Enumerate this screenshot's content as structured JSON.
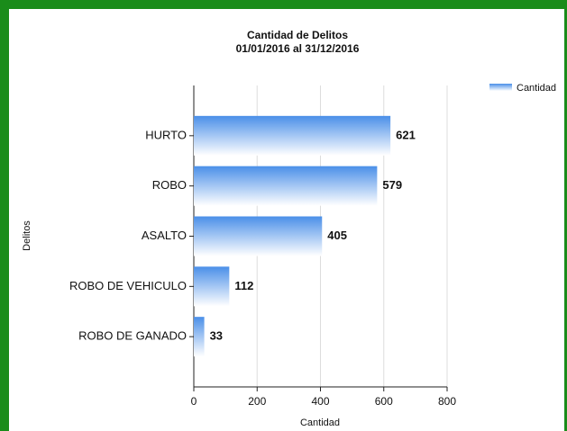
{
  "chart_data": {
    "type": "bar",
    "orientation": "horizontal",
    "title": "Cantidad de Delitos",
    "subtitle": "01/01/2016 al 31/12/2016",
    "x_label": "Cantidad",
    "y_label": "Delitos",
    "categories": [
      "HURTO",
      "ROBO",
      "ASALTO",
      "ROBO DE VEHICULO",
      "ROBO DE GANADO"
    ],
    "series": [
      {
        "name": "Cantidad",
        "color": "#4a8fe8",
        "values": [
          621,
          579,
          405,
          112,
          33
        ]
      }
    ],
    "xlim": [
      0,
      800
    ],
    "xticks": [
      0,
      200,
      400,
      600,
      800
    ],
    "grid": true,
    "legend": "top-right"
  }
}
